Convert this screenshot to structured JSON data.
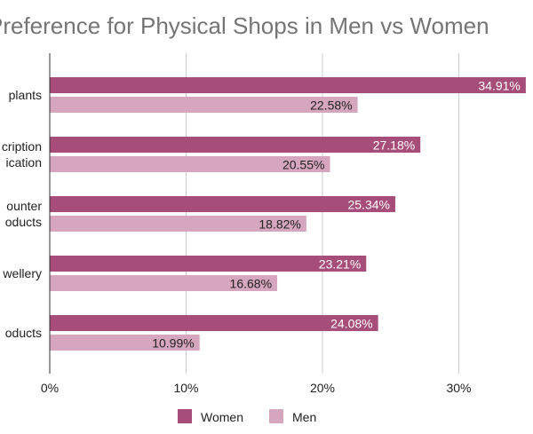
{
  "chart_data": {
    "type": "bar",
    "orientation": "horizontal",
    "title": "Preference for Physical Shops in Men vs Women",
    "categories": [
      "House plants",
      "Prescription medication",
      "Over-the-counter health products",
      "Jewellery",
      "Beauty products"
    ],
    "categories_visible": [
      [
        "plants"
      ],
      [
        "cription",
        "ication"
      ],
      [
        "ounter",
        "oducts"
      ],
      [
        "wellery"
      ],
      [
        "oducts"
      ]
    ],
    "series": [
      {
        "name": "Women",
        "color": "#a64d79",
        "values": [
          34.91,
          27.18,
          25.34,
          23.21,
          24.08
        ],
        "labels": [
          "34.91%",
          "27.18%",
          "25.34%",
          "23.21%",
          "24.08%"
        ]
      },
      {
        "name": "Men",
        "color": "#d5a6bd",
        "values": [
          22.58,
          20.55,
          18.82,
          16.68,
          10.99
        ],
        "labels": [
          "22.58%",
          "20.55%",
          "18.82%",
          "16.68%",
          "10.99%"
        ]
      }
    ],
    "xlim": [
      0,
      35
    ],
    "xticks": [
      0,
      10,
      20,
      30
    ],
    "xtick_labels": [
      "0%",
      "10%",
      "20%",
      "30%"
    ],
    "grid": true,
    "legend": "bottom"
  }
}
